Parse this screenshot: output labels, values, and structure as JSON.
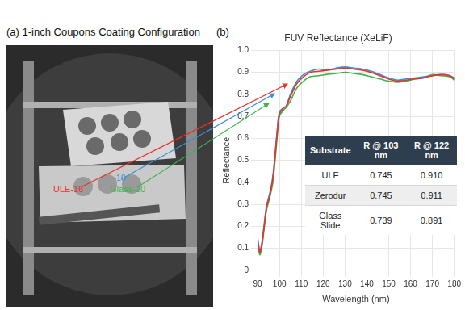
{
  "panel_a": {
    "title": "(a) 1-inch Coupons Coating Configuration",
    "labels": [
      {
        "text": "ULE-16",
        "color": "#e8322a"
      },
      {
        "text": "-19",
        "color": "#3a8fd8"
      },
      {
        "text": "Glass-20",
        "color": "#3fb34a"
      }
    ]
  },
  "panel_b_label": "(b)",
  "chart_data": {
    "type": "line",
    "title": "FUV Reflectance (XeLiF)",
    "x_label": "Wavelength (nm)",
    "y_label": "Reflectance",
    "x": [
      90,
      91,
      92,
      93,
      94,
      95,
      96,
      97,
      98,
      99,
      100,
      102,
      103,
      105,
      108,
      111,
      114,
      118,
      122,
      126,
      130,
      134,
      138,
      142,
      146,
      150,
      154,
      158,
      162,
      166,
      170,
      174,
      178,
      180
    ],
    "series": [
      {
        "color": "#e8322a",
        "values": [
          0.14,
          0.08,
          0.12,
          0.2,
          0.28,
          0.32,
          0.36,
          0.42,
          0.52,
          0.63,
          0.71,
          0.74,
          0.745,
          0.79,
          0.85,
          0.88,
          0.9,
          0.905,
          0.91,
          0.915,
          0.92,
          0.915,
          0.91,
          0.9,
          0.885,
          0.87,
          0.86,
          0.865,
          0.87,
          0.875,
          0.885,
          0.89,
          0.885,
          0.87
        ]
      },
      {
        "color": "#3a8fd8",
        "values": [
          0.15,
          0.09,
          0.13,
          0.21,
          0.29,
          0.33,
          0.37,
          0.43,
          0.53,
          0.64,
          0.72,
          0.74,
          0.745,
          0.8,
          0.86,
          0.89,
          0.905,
          0.915,
          0.911,
          0.92,
          0.925,
          0.92,
          0.915,
          0.905,
          0.89,
          0.875,
          0.865,
          0.87,
          0.875,
          0.88,
          0.885,
          0.89,
          0.885,
          0.875
        ]
      },
      {
        "color": "#3fb34a",
        "values": [
          0.13,
          0.07,
          0.11,
          0.19,
          0.27,
          0.31,
          0.35,
          0.4,
          0.5,
          0.61,
          0.7,
          0.73,
          0.739,
          0.77,
          0.83,
          0.86,
          0.88,
          0.885,
          0.891,
          0.895,
          0.9,
          0.895,
          0.89,
          0.88,
          0.87,
          0.86,
          0.855,
          0.86,
          0.87,
          0.875,
          0.89,
          0.885,
          0.88,
          0.865
        ]
      }
    ],
    "xlim": [
      90,
      180
    ],
    "xticks": [
      90,
      100,
      110,
      120,
      130,
      140,
      150,
      160,
      170,
      180
    ],
    "ylim": [
      0,
      1
    ],
    "yticks": [
      0,
      0.1,
      0.2,
      0.3,
      0.4,
      0.5,
      0.6,
      0.7,
      0.8,
      0.9,
      {
        "value": 1,
        "label": "1.0"
      }
    ],
    "grid": true
  },
  "table": {
    "header": [
      "Substrate",
      "R @ 103 nm",
      "R @ 122 nm"
    ],
    "rows": [
      [
        "ULE",
        "0.745",
        "0.910"
      ],
      [
        "Zerodur",
        "0.745",
        "0.911"
      ],
      [
        "Glass Slide",
        "0.739",
        "0.891"
      ]
    ]
  }
}
